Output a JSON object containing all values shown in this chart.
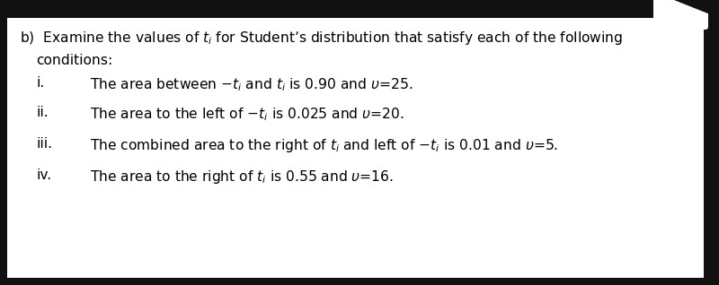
{
  "background_color": "#ffffff",
  "dark_bg_color": "#111111",
  "font_size": 11.2,
  "font_family": "DejaVu Sans",
  "line1": "b)  Examine the values of $t_i$ for Student’s distribution that satisfy each of the following",
  "line2": "     conditions:",
  "item_i_label": "i.",
  "item_i_text": "The area between $-t_i$ and $t_i$ is 0.90 and $\\upsilon$=25.",
  "item_ii_label": "ii.",
  "item_ii_text": "The area to the left of $-t_i$ is 0.025 and $\\upsilon$=20.",
  "item_iii_label": "iii.",
  "item_iii_text": "The combined area to the right of $t_i$ and left of $-t_i$ is 0.01 and $\\upsilon$=5.",
  "item_iv_label": "iv.",
  "item_iv_text": "The area to the right of $t_i$ is 0.55 and $\\upsilon$=16.",
  "text_color": "#000000",
  "top_bar_color": "#333333"
}
